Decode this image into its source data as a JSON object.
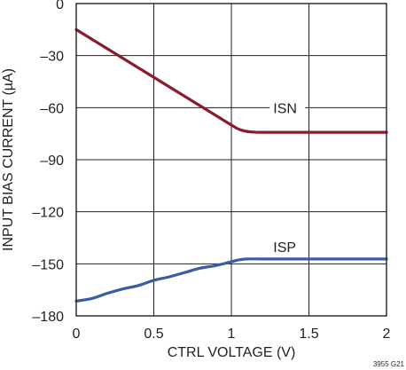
{
  "chart_data": {
    "type": "line",
    "xlabel": "CTRL VOLTAGE (V)",
    "ylabel": "INPUT BIAS CURRENT (µA)",
    "xlim": [
      0,
      2
    ],
    "ylim": [
      -180,
      0
    ],
    "x_ticks": [
      {
        "value": 0,
        "label": "0"
      },
      {
        "value": 0.5,
        "label": "0.5"
      },
      {
        "value": 1,
        "label": "1"
      },
      {
        "value": 1.5,
        "label": "1.5"
      },
      {
        "value": 2,
        "label": "2"
      }
    ],
    "y_ticks": [
      {
        "value": 0,
        "label": "0"
      },
      {
        "value": -30,
        "label": "–30"
      },
      {
        "value": -60,
        "label": "–60"
      },
      {
        "value": -90,
        "label": "–90"
      },
      {
        "value": -120,
        "label": "–120"
      },
      {
        "value": -150,
        "label": "–150"
      },
      {
        "value": -180,
        "label": "–180"
      }
    ],
    "grid": true,
    "series": [
      {
        "name": "ISN",
        "color": "#8b1a2e",
        "x": [
          0,
          0.1,
          0.2,
          0.3,
          0.4,
          0.5,
          0.6,
          0.7,
          0.8,
          0.9,
          1.0,
          1.05,
          1.1,
          1.15,
          1.2,
          1.3,
          1.4,
          1.5,
          1.6,
          1.7,
          1.8,
          1.9,
          2.0
        ],
        "y": [
          -15,
          -20.5,
          -26,
          -31.5,
          -37,
          -42.5,
          -48,
          -53.5,
          -59,
          -64.5,
          -70,
          -72.5,
          -73.7,
          -74.1,
          -74.2,
          -74.2,
          -74.2,
          -74.2,
          -74.2,
          -74.2,
          -74.2,
          -74.2,
          -74.2
        ],
        "label_at": {
          "x": 1.27,
          "y": -60
        }
      },
      {
        "name": "ISP",
        "color": "#3a5ca8",
        "x": [
          0,
          0.1,
          0.2,
          0.3,
          0.4,
          0.5,
          0.6,
          0.7,
          0.8,
          0.9,
          1.0,
          1.05,
          1.1,
          1.2,
          1.3,
          1.4,
          1.5,
          1.6,
          1.7,
          1.8,
          1.9,
          2.0
        ],
        "y": [
          -171.5,
          -170,
          -167,
          -164.5,
          -162.5,
          -159.5,
          -157.5,
          -155,
          -152.5,
          -151,
          -148.8,
          -147.7,
          -147.2,
          -147.2,
          -147.2,
          -147.2,
          -147.2,
          -147.2,
          -147.2,
          -147.2,
          -147.2,
          -147.2
        ],
        "label_at": {
          "x": 1.27,
          "y": -140
        }
      }
    ],
    "figure_id": "3955 G21"
  }
}
